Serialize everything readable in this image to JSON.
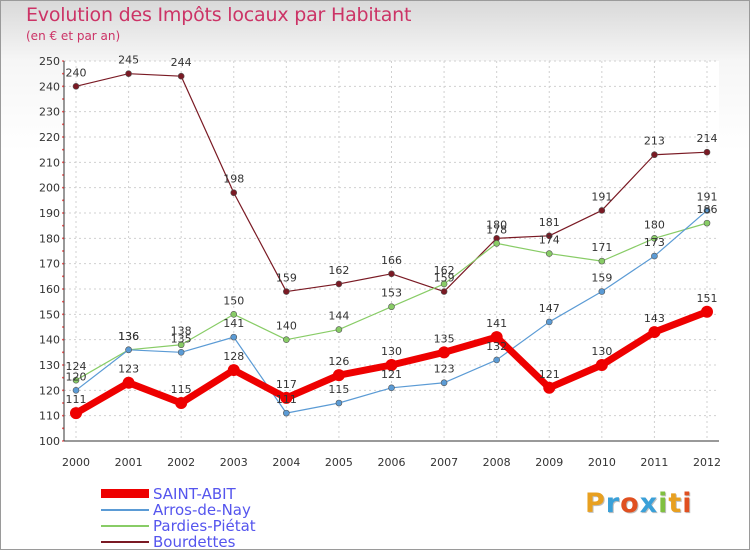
{
  "header": {
    "title": "Evolution des Impôts locaux par Habitant",
    "subtitle": "(en € et par an)"
  },
  "brand": {
    "letters": [
      "P",
      "r",
      "o",
      "x",
      "i",
      "t",
      "i"
    ],
    "colors": [
      "#e8a020",
      "#3aa0d8",
      "#e05020",
      "#3aa0d8",
      "#80c040",
      "#e8a020",
      "#e05020"
    ]
  },
  "chart_data": {
    "type": "line",
    "title": "Evolution des Impôts locaux par Habitant",
    "subtitle": "(en € et par an)",
    "xlabel": "",
    "ylabel": "",
    "x": [
      2000,
      2001,
      2002,
      2003,
      2004,
      2005,
      2006,
      2007,
      2008,
      2009,
      2010,
      2011,
      2012
    ],
    "ylim": [
      100,
      250
    ],
    "yticks": [
      100,
      110,
      120,
      130,
      140,
      150,
      160,
      170,
      180,
      190,
      200,
      210,
      220,
      230,
      240,
      250
    ],
    "grid": true,
    "legend_placement": "bottom-left",
    "series": [
      {
        "name": "SAINT-ABIT",
        "color": "#ee0000",
        "values": [
          111,
          123,
          115,
          128,
          117,
          126,
          130,
          135,
          141,
          121,
          130,
          143,
          151
        ]
      },
      {
        "name": "Arros-de-Nay",
        "color": "#5b9bd5",
        "values": [
          120,
          136,
          135,
          141,
          111,
          115,
          121,
          123,
          132,
          147,
          159,
          173,
          191
        ]
      },
      {
        "name": "Pardies-Piétat",
        "color": "#88cc66",
        "values": [
          124,
          136,
          138,
          150,
          140,
          144,
          153,
          162,
          178,
          174,
          171,
          180,
          186
        ]
      },
      {
        "name": "Bourdettes",
        "color": "#7a1a24",
        "values": [
          240,
          245,
          244,
          198,
          159,
          162,
          166,
          159,
          180,
          181,
          191,
          213,
          214
        ]
      }
    ]
  }
}
